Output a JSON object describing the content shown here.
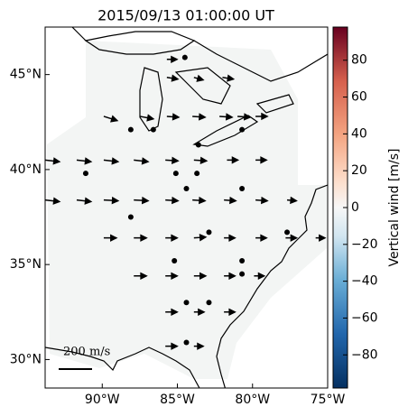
{
  "chart_data": {
    "type": "vector-map",
    "title": "2015/09/13 01:00:00 UT",
    "xlim": [
      -93.8,
      -75
    ],
    "ylim": [
      28.5,
      47.5
    ],
    "xticks": [
      {
        "value": -90,
        "label": "90°W"
      },
      {
        "value": -85,
        "label": "85°W"
      },
      {
        "value": -80,
        "label": "80°W"
      },
      {
        "value": -75,
        "label": "75°W"
      }
    ],
    "yticks": [
      {
        "value": 30,
        "label": "30°N"
      },
      {
        "value": 35,
        "label": "35°N"
      },
      {
        "value": 40,
        "label": "40°N"
      },
      {
        "value": 45,
        "label": "45°N"
      }
    ],
    "stations": [
      [
        -84.5,
        45.9
      ],
      [
        -88.1,
        42.1
      ],
      [
        -86.6,
        42.1
      ],
      [
        -83.6,
        41.3
      ],
      [
        -80.7,
        42.1
      ],
      [
        -91.1,
        39.8
      ],
      [
        -85.1,
        39.8
      ],
      [
        -83.7,
        39.8
      ],
      [
        -84.4,
        39.0
      ],
      [
        -80.7,
        39.0
      ],
      [
        -88.1,
        37.5
      ],
      [
        -82.9,
        36.7
      ],
      [
        -77.7,
        36.7
      ],
      [
        -85.2,
        35.2
      ],
      [
        -80.7,
        35.2
      ],
      [
        -80.7,
        34.5
      ],
      [
        -84.4,
        33.0
      ],
      [
        -82.9,
        33.0
      ],
      [
        -84.4,
        30.9
      ]
    ],
    "vectors": [
      [
        -85.7,
        45.8,
        60,
        0
      ],
      [
        -85.7,
        44.85,
        65,
        -10
      ],
      [
        -83.9,
        44.85,
        55,
        -15
      ],
      [
        -82.0,
        44.85,
        65,
        -10
      ],
      [
        -89.9,
        42.8,
        80,
        -25
      ],
      [
        -87.5,
        42.8,
        80,
        -15
      ],
      [
        -85.7,
        42.8,
        70,
        -5
      ],
      [
        -84.0,
        42.8,
        75,
        -5
      ],
      [
        -82.2,
        42.8,
        75,
        -5
      ],
      [
        -81.0,
        42.8,
        75,
        -5
      ],
      [
        -79.8,
        42.8,
        70,
        0
      ],
      [
        -93.8,
        40.5,
        85,
        -10
      ],
      [
        -91.7,
        40.5,
        85,
        -10
      ],
      [
        -89.9,
        40.5,
        85,
        -10
      ],
      [
        -87.9,
        40.5,
        85,
        -10
      ],
      [
        -85.8,
        40.5,
        75,
        -5
      ],
      [
        -83.9,
        40.5,
        75,
        -5
      ],
      [
        -81.7,
        40.5,
        65,
        0
      ],
      [
        -79.8,
        40.5,
        65,
        0
      ],
      [
        -93.8,
        38.4,
        85,
        -10
      ],
      [
        -91.7,
        38.4,
        85,
        -10
      ],
      [
        -89.9,
        38.4,
        85,
        -5
      ],
      [
        -87.9,
        38.4,
        85,
        -5
      ],
      [
        -85.8,
        38.4,
        75,
        -5
      ],
      [
        -84.0,
        38.4,
        75,
        -5
      ],
      [
        -81.9,
        38.4,
        70,
        -5
      ],
      [
        -79.8,
        38.4,
        70,
        -5
      ],
      [
        -77.7,
        38.4,
        55,
        -5
      ],
      [
        -89.9,
        36.4,
        75,
        0
      ],
      [
        -87.9,
        36.4,
        75,
        0
      ],
      [
        -85.8,
        36.4,
        70,
        0
      ],
      [
        -83.9,
        36.4,
        70,
        5
      ],
      [
        -81.9,
        36.4,
        65,
        0
      ],
      [
        -79.8,
        36.4,
        65,
        0
      ],
      [
        -77.8,
        36.4,
        65,
        0
      ],
      [
        -75.8,
        36.4,
        55,
        0
      ],
      [
        -87.9,
        34.4,
        75,
        0
      ],
      [
        -85.8,
        34.4,
        70,
        0
      ],
      [
        -83.9,
        34.4,
        70,
        0
      ],
      [
        -81.9,
        34.4,
        65,
        0
      ],
      [
        -79.9,
        34.4,
        60,
        0
      ],
      [
        -85.8,
        32.5,
        70,
        0
      ],
      [
        -83.9,
        32.5,
        60,
        0
      ],
      [
        -81.9,
        32.5,
        65,
        0
      ],
      [
        -85.8,
        30.7,
        70,
        0
      ],
      [
        -83.9,
        30.7,
        55,
        0
      ]
    ],
    "scale_value": 200,
    "scale_label": "200 m/s",
    "colorbar": {
      "label": "Vertical wind [m/s]",
      "lim": [
        -98,
        98
      ],
      "ticks": [
        {
          "value": -80,
          "label": "−80"
        },
        {
          "value": -60,
          "label": "−60"
        },
        {
          "value": -40,
          "label": "−40"
        },
        {
          "value": -20,
          "label": "−20"
        },
        0,
        20,
        40,
        60,
        80
      ]
    }
  }
}
